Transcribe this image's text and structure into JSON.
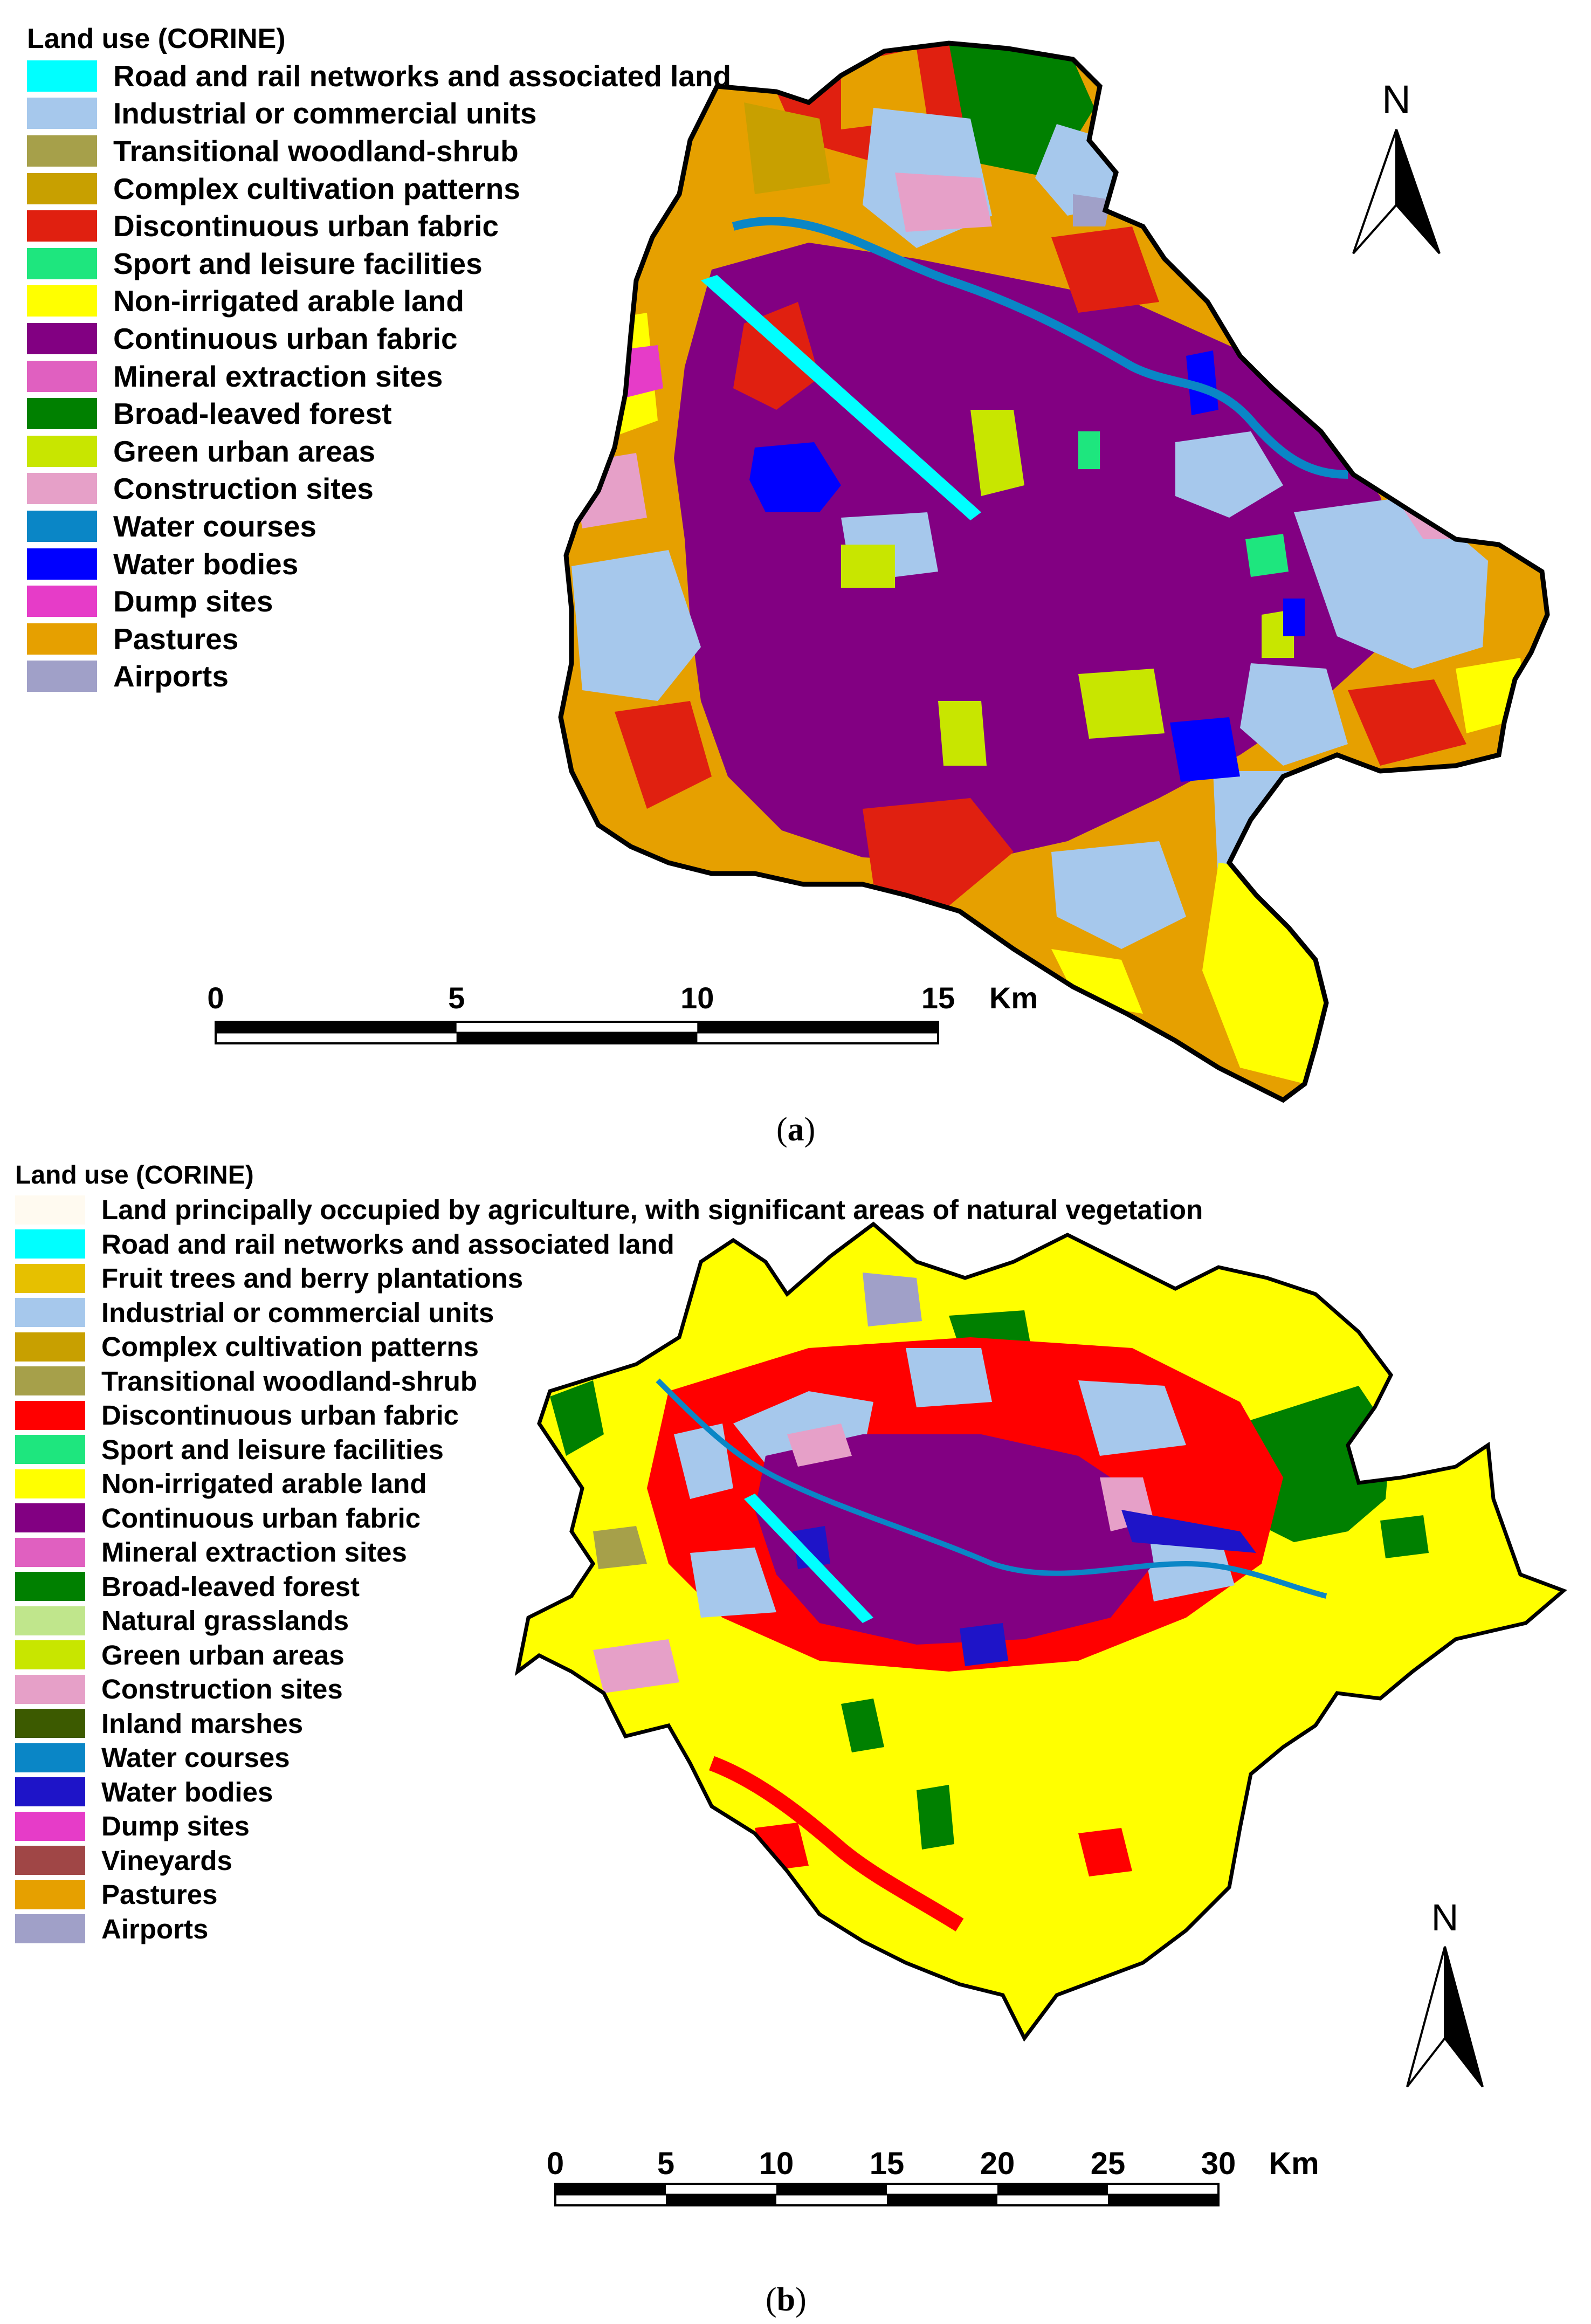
{
  "panel_a": {
    "legend_title": "Land use (CORINE)",
    "legend": [
      {
        "label": "Road and rail networks and associated land",
        "color": "#00ffff"
      },
      {
        "label": "Industrial or commercial units",
        "color": "#a6c8ec"
      },
      {
        "label": "Transitional woodland-shrub",
        "color": "#a6a04a"
      },
      {
        "label": "Complex cultivation patterns",
        "color": "#c8a000"
      },
      {
        "label": "Discontinuous urban fabric",
        "color": "#e02010"
      },
      {
        "label": "Sport and leisure facilities",
        "color": "#1ee67e"
      },
      {
        "label": "Non-irrigated arable land",
        "color": "#ffff00"
      },
      {
        "label": "Continuous urban fabric",
        "color": "#820082"
      },
      {
        "label": "Mineral extraction sites",
        "color": "#e060c0"
      },
      {
        "label": "Broad-leaved forest",
        "color": "#008000"
      },
      {
        "label": "Green urban areas",
        "color": "#c8e600"
      },
      {
        "label": "Construction sites",
        "color": "#e6a0c8"
      },
      {
        "label": "Water courses",
        "color": "#0a86c6"
      },
      {
        "label": "Water bodies",
        "color": "#0000ff"
      },
      {
        "label": "Dump sites",
        "color": "#e63cc8"
      },
      {
        "label": "Pastures",
        "color": "#e6a000"
      },
      {
        "label": "Airports",
        "color": "#a0a0c8"
      }
    ],
    "north_label": "N",
    "scale_labels": [
      "0",
      "5",
      "10",
      "15"
    ],
    "scale_unit": "Km",
    "caption_letter": "a"
  },
  "panel_b": {
    "legend_title": "Land use (CORINE)",
    "legend": [
      {
        "label": "Land principally occupied by agriculture, with significant areas of natural vegetation",
        "color": "#fffaf0"
      },
      {
        "label": "Road and rail networks and associated land",
        "color": "#00ffff"
      },
      {
        "label": "Fruit trees and berry plantations",
        "color": "#e6c000"
      },
      {
        "label": "Industrial or commercial units",
        "color": "#a6c8ec"
      },
      {
        "label": "Complex cultivation patterns",
        "color": "#c8a000"
      },
      {
        "label": "Transitional woodland-shrub",
        "color": "#a6a04a"
      },
      {
        "label": "Discontinuous urban fabric",
        "color": "#ff0000"
      },
      {
        "label": "Sport and leisure facilities",
        "color": "#1ee67e"
      },
      {
        "label": "Non-irrigated arable land",
        "color": "#ffff00"
      },
      {
        "label": "Continuous urban fabric",
        "color": "#820082"
      },
      {
        "label": "Mineral extraction sites",
        "color": "#e060c0"
      },
      {
        "label": "Broad-leaved forest",
        "color": "#008000"
      },
      {
        "label": "Natural grasslands",
        "color": "#c0e68c"
      },
      {
        "label": "Green urban areas",
        "color": "#c8e600"
      },
      {
        "label": "Construction sites",
        "color": "#e6a0c8"
      },
      {
        "label": "Inland marshes",
        "color": "#3c5a00"
      },
      {
        "label": "Water courses",
        "color": "#0a86c6"
      },
      {
        "label": "Water bodies",
        "color": "#1e14c8"
      },
      {
        "label": "Dump sites",
        "color": "#e63cc8"
      },
      {
        "label": "Vineyards",
        "color": "#a04646"
      },
      {
        "label": "Pastures",
        "color": "#e6a000"
      },
      {
        "label": "Airports",
        "color": "#a0a0c8"
      }
    ],
    "north_label": "N",
    "scale_labels": [
      "0",
      "5",
      "10",
      "15",
      "20",
      "25",
      "30"
    ],
    "scale_unit": "Km",
    "caption_letter": "b"
  }
}
